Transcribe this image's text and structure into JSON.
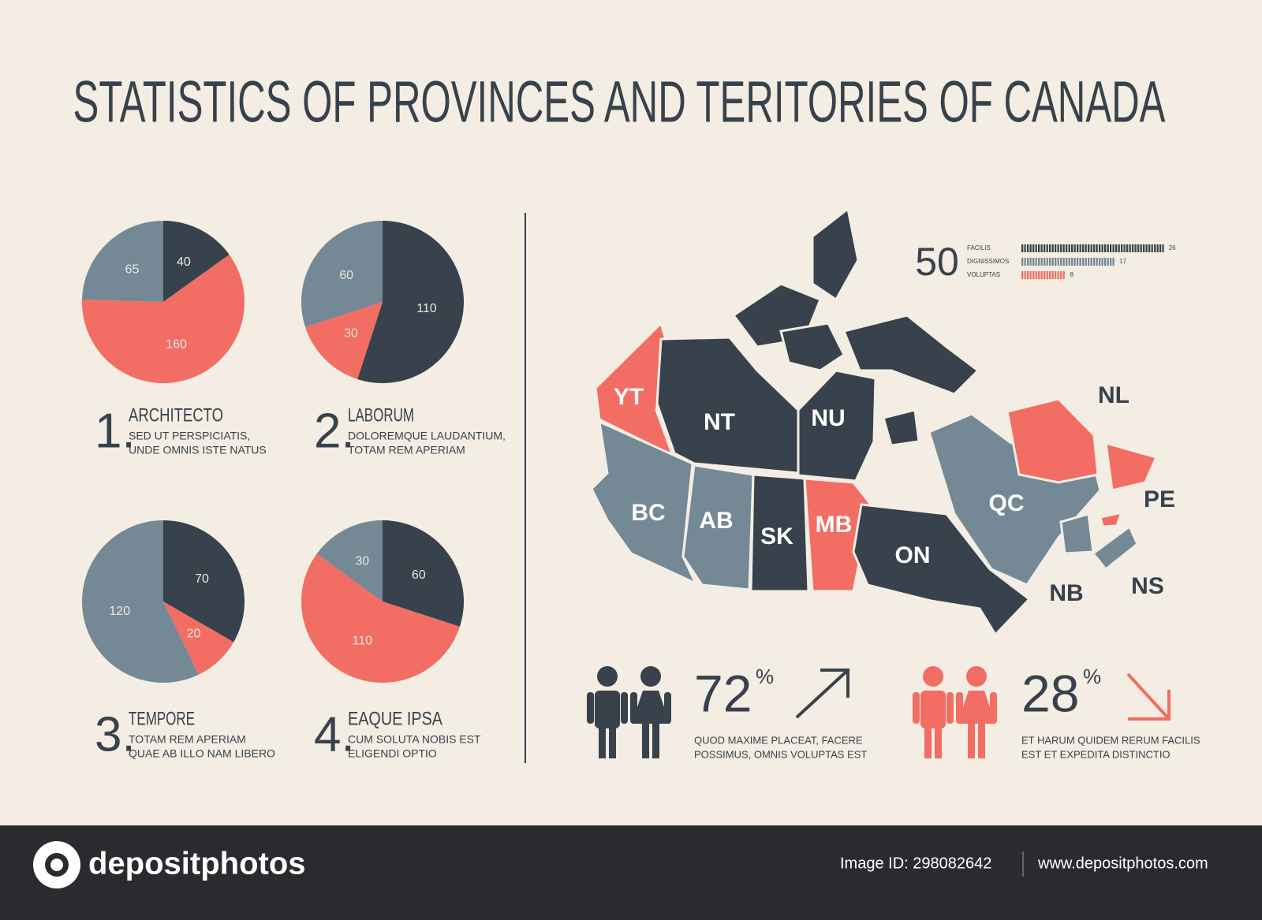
{
  "title": "STATISTICS OF PROVINCES AND TERITORIES OF CANADA",
  "chart_data": [
    {
      "type": "pie",
      "number": "1.",
      "title": "ARCHITECTO",
      "description": [
        "SED UT PERSPICIATIS,",
        "UNDE OMNIS ISTE NATUS"
      ],
      "values": [
        40,
        160,
        65
      ],
      "colors": [
        "#37424c",
        "#f26d63",
        "#748896"
      ]
    },
    {
      "type": "pie",
      "number": "2.",
      "title": "LABORUM",
      "description": [
        "DOLOREMQUE LAUDANTIUM,",
        "TOTAM REM APERIAM"
      ],
      "values": [
        110,
        30,
        60
      ],
      "colors": [
        "#37424c",
        "#f26d63",
        "#748896"
      ]
    },
    {
      "type": "pie",
      "number": "3.",
      "title": "TEMPORE",
      "description": [
        "TOTAM REM APERIAM",
        "QUAE AB ILLO NAM LIBERO"
      ],
      "values": [
        70,
        20,
        120
      ],
      "colors": [
        "#37424c",
        "#f26d63",
        "#748896"
      ]
    },
    {
      "type": "pie",
      "number": "4.",
      "title": "EAQUE IPSA",
      "description": [
        "CUM SOLUTA NOBIS EST",
        "ELIGENDI OPTIO"
      ],
      "values": [
        60,
        110,
        30
      ],
      "colors": [
        "#37424c",
        "#f26d63",
        "#748896"
      ]
    },
    {
      "type": "bar",
      "headline": "50",
      "categories": [
        "FACILIS",
        "DIGNISSIMOS",
        "VOLUPTAS"
      ],
      "values": [
        26,
        17,
        8
      ],
      "colors": [
        "#37424c",
        "#748896",
        "#f26d63"
      ]
    }
  ],
  "map": {
    "regions": [
      {
        "label": "YT",
        "color": "#f26d63"
      },
      {
        "label": "NT",
        "color": "#37424c"
      },
      {
        "label": "NU",
        "color": "#37424c"
      },
      {
        "label": "BC",
        "color": "#748896"
      },
      {
        "label": "AB",
        "color": "#748896"
      },
      {
        "label": "SK",
        "color": "#37424c"
      },
      {
        "label": "MB",
        "color": "#f26d63"
      },
      {
        "label": "ON",
        "color": "#37424c"
      },
      {
        "label": "QC",
        "color": "#748896"
      },
      {
        "label": "NL",
        "color": "#f26d63"
      },
      {
        "label": "PE",
        "color": "#f26d63"
      },
      {
        "label": "NB",
        "color": "#748896"
      },
      {
        "label": "NS",
        "color": "#748896"
      }
    ]
  },
  "stats": [
    {
      "value": "72",
      "unit": "%",
      "description": [
        "QUOD MAXIME PLACEAT, FACERE",
        "POSSIMUS, OMNIS  VOLUPTAS EST"
      ],
      "color": "#37424c"
    },
    {
      "value": "28",
      "unit": "%",
      "description": [
        "ET HARUM QUIDEM RERUM FACILIS",
        "EST ET EXPEDITA DISTINCTIO"
      ],
      "color": "#f26d63"
    }
  ],
  "footer": {
    "brand": "depositphotos",
    "image_id": "Image ID: 298082642",
    "url": "www.depositphotos.com"
  }
}
